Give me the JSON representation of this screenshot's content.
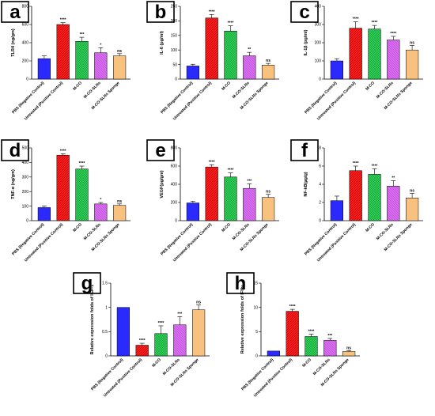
{
  "colors": {
    "pbs": "#2a2aff",
    "untreated": "#ff1f1f",
    "mco": "#2fd158",
    "sln": "#d96bf0",
    "sponge": "#ffc98a"
  },
  "chart_data": [
    {
      "type": "bar",
      "panel": "a",
      "ylabel": "TLR4 (ng/gm)",
      "ylim": [
        0,
        800
      ],
      "yticks": [
        0,
        200,
        400,
        600,
        800
      ],
      "categories": [
        "PBS (Negative Control)",
        "Untreated (Positive Control)",
        "M-CO",
        "M-CO-SLNs",
        "M-CO-SLNs Sponge"
      ],
      "values": [
        225,
        600,
        415,
        290,
        255
      ],
      "errors": [
        30,
        20,
        45,
        55,
        25
      ],
      "significance": [
        "",
        "****",
        "***",
        "*",
        "ns"
      ]
    },
    {
      "type": "bar",
      "panel": "b",
      "ylabel": "IL-6 (pg/ml)",
      "ylim": [
        0,
        250
      ],
      "yticks": [
        0,
        50,
        100,
        150,
        200,
        250
      ],
      "categories": [
        "PBS (Negative Control)",
        "Untreated (Positive Control)",
        "M-CO",
        "M-CO-SLNs",
        "M-CO-SLNs Sponge"
      ],
      "values": [
        45,
        210,
        165,
        80,
        48
      ],
      "errors": [
        6,
        12,
        18,
        12,
        6
      ],
      "significance": [
        "",
        "****",
        "****",
        "**",
        "ns"
      ]
    },
    {
      "type": "bar",
      "panel": "c",
      "ylabel": "IL-1β (pg/ml)",
      "ylim": [
        0,
        400
      ],
      "yticks": [
        0,
        100,
        200,
        300,
        400
      ],
      "categories": [
        "PBS (Negative Control)",
        "Untreated (Positive Control)",
        "M-CO",
        "M-CO-SLNs",
        "M-CO-SLNs Sponge"
      ],
      "values": [
        100,
        280,
        275,
        215,
        160
      ],
      "errors": [
        12,
        35,
        20,
        20,
        25
      ],
      "significance": [
        "",
        "****",
        "****",
        "****",
        "ns"
      ]
    },
    {
      "type": "bar",
      "panel": "d",
      "ylabel": "TNF-α (ng/gm)",
      "ylim": [
        0,
        500
      ],
      "yticks": [
        0,
        100,
        200,
        300,
        400,
        500
      ],
      "categories": [
        "PBS (Negative Control)",
        "Untreated (Positive Control)",
        "M-CO",
        "M-CO-SLNs",
        "M-CO-SLNs Sponge"
      ],
      "values": [
        90,
        450,
        355,
        115,
        105
      ],
      "errors": [
        10,
        10,
        20,
        10,
        10
      ],
      "significance": [
        "",
        "****",
        "****",
        "*",
        "ns"
      ]
    },
    {
      "type": "bar",
      "panel": "e",
      "ylabel": "VEGF(pg/gm)",
      "ylim": [
        0,
        800
      ],
      "yticks": [
        0,
        200,
        400,
        600,
        800
      ],
      "categories": [
        "PBS (Negative Control)",
        "Untreated (Positive Control)",
        "M-CO",
        "M-CO-SLNs",
        "M-CO-SLNs Sponge"
      ],
      "values": [
        195,
        590,
        480,
        355,
        255
      ],
      "errors": [
        20,
        25,
        45,
        50,
        35
      ],
      "significance": [
        "",
        "****",
        "****",
        "***",
        "ns"
      ]
    },
    {
      "type": "bar",
      "panel": "f",
      "ylabel": "NF-kB(µg/g)",
      "ylim": [
        0,
        8
      ],
      "yticks": [
        0,
        2,
        4,
        6,
        8
      ],
      "categories": [
        "PBS (Negative Control)",
        "Untreated (Positive Control)",
        "M-CO",
        "M-CO-SLNs",
        "M-CO-SLNs Sponge"
      ],
      "values": [
        2.2,
        5.5,
        5.1,
        3.8,
        2.5
      ],
      "errors": [
        0.5,
        0.5,
        0.6,
        0.6,
        0.5
      ],
      "significance": [
        "",
        "****",
        "****",
        "**",
        "ns"
      ]
    },
    {
      "type": "bar",
      "panel": "g",
      "ylabel": "Relative expression folds of IGF-1",
      "ylim": [
        0,
        1.5
      ],
      "yticks": [
        0.0,
        0.5,
        1.0,
        1.5
      ],
      "categories": [
        "PBS (Negative Control)",
        "Untreated (Positive Control)",
        "M-CO",
        "M-CO-SLNs",
        "M-CO-SLNs Sponge"
      ],
      "values": [
        1.0,
        0.22,
        0.46,
        0.64,
        0.95
      ],
      "errors": [
        0,
        0.04,
        0.16,
        0.17,
        0.1
      ],
      "significance": [
        "",
        "****",
        "****",
        "***",
        "ns"
      ]
    },
    {
      "type": "bar",
      "panel": "h",
      "ylabel": "Relative expression folds of IFNγ",
      "ylim": [
        0,
        15
      ],
      "yticks": [
        0,
        5,
        10,
        15
      ],
      "categories": [
        "PBS (Negative Control)",
        "Untreated (Positive Control)",
        "M-CO",
        "M-CO-SLNs",
        "M-CO-SLNs Sponge"
      ],
      "values": [
        1.0,
        9.2,
        4.0,
        3.2,
        0.9
      ],
      "errors": [
        0,
        0.4,
        0.5,
        0.4,
        0.2
      ],
      "significance": [
        "",
        "****",
        "****",
        "***",
        "ns"
      ]
    }
  ]
}
